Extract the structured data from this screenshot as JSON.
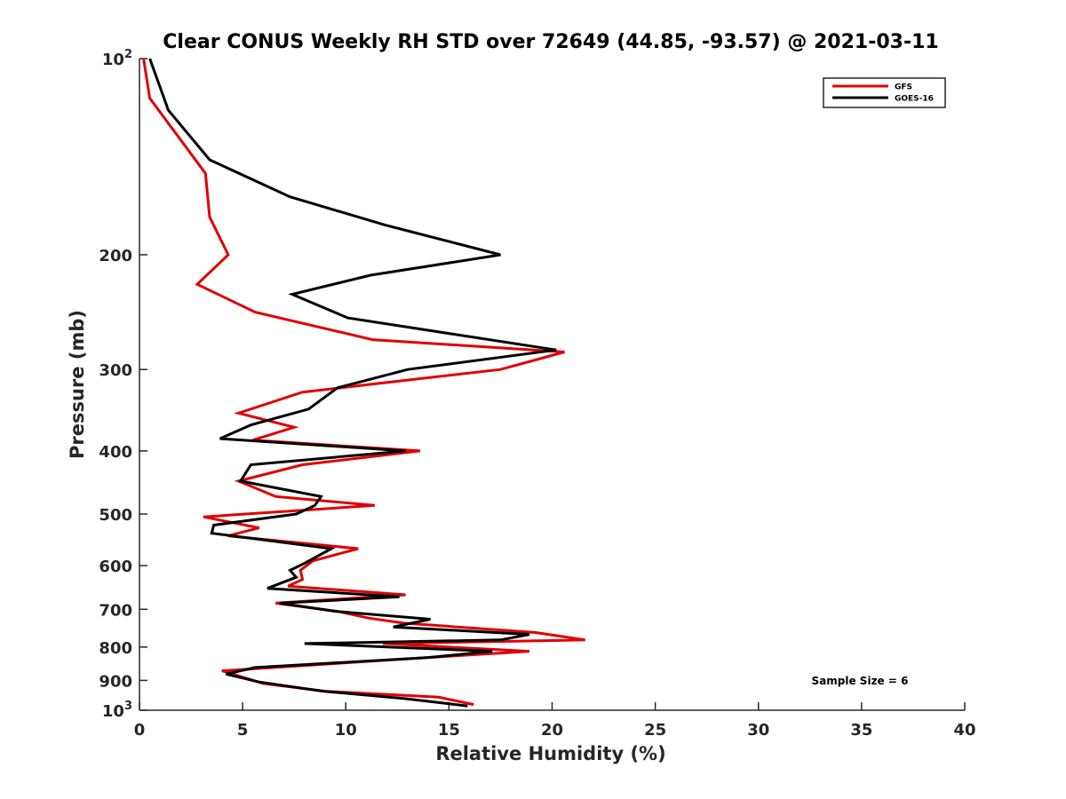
{
  "chart_data": {
    "type": "line",
    "title": "Clear CONUS Weekly RH STD over 72649 (44.85, -93.57) @ 2021-03-11",
    "xlabel": "Relative Humidity (%)",
    "ylabel": "Pressure (mb)",
    "xlim": [
      0,
      40
    ],
    "ylim": [
      100,
      1000
    ],
    "y_scale": "log",
    "y_reversed": true,
    "grid": false,
    "legend_position": "top-right",
    "x_ticks": [
      "0",
      "5",
      "10",
      "15",
      "20",
      "25",
      "30",
      "35",
      "40"
    ],
    "y_ticks": [
      {
        "value": 100,
        "base": "10",
        "exp": "2"
      },
      {
        "value": 200,
        "label": "200"
      },
      {
        "value": 300,
        "label": "300"
      },
      {
        "value": 400,
        "label": "400"
      },
      {
        "value": 500,
        "label": "500"
      },
      {
        "value": 600,
        "label": "600"
      },
      {
        "value": 700,
        "label": "700"
      },
      {
        "value": 800,
        "label": "800"
      },
      {
        "value": 900,
        "label": "900"
      },
      {
        "value": 1000,
        "base": "10",
        "exp": "3"
      }
    ],
    "annotation": "Sample Size = 6",
    "series": [
      {
        "name": "GFS",
        "color": "#e00000",
        "points": [
          [
            0.2,
            100
          ],
          [
            0.5,
            115
          ],
          [
            3.2,
            150
          ],
          [
            3.4,
            175
          ],
          [
            4.3,
            200
          ],
          [
            2.8,
            222
          ],
          [
            5.6,
            245
          ],
          [
            11.3,
            270
          ],
          [
            20.6,
            282
          ],
          [
            17.5,
            300
          ],
          [
            7.9,
            325
          ],
          [
            4.8,
            350
          ],
          [
            7.5,
            368
          ],
          [
            5.5,
            385
          ],
          [
            13.6,
            400
          ],
          [
            7.9,
            420
          ],
          [
            4.8,
            445
          ],
          [
            6.6,
            470
          ],
          [
            11.4,
            485
          ],
          [
            3.1,
            505
          ],
          [
            5.8,
            525
          ],
          [
            4.3,
            540
          ],
          [
            10.6,
            565
          ],
          [
            8.4,
            590
          ],
          [
            7.8,
            610
          ],
          [
            7.9,
            630
          ],
          [
            7.2,
            645
          ],
          [
            12.9,
            665
          ],
          [
            6.6,
            685
          ],
          [
            9.6,
            705
          ],
          [
            11.1,
            722
          ],
          [
            12.8,
            735
          ],
          [
            19.2,
            760
          ],
          [
            21.6,
            780
          ],
          [
            11.8,
            790
          ],
          [
            18.9,
            812
          ],
          [
            14.0,
            830
          ],
          [
            4.0,
            870
          ],
          [
            6.0,
            910
          ],
          [
            9.0,
            935
          ],
          [
            14.5,
            955
          ],
          [
            16.2,
            980
          ]
        ]
      },
      {
        "name": "GOES-16",
        "color": "#000000",
        "points": [
          [
            0.5,
            100
          ],
          [
            1.4,
            120
          ],
          [
            3.4,
            143
          ],
          [
            7.3,
            163
          ],
          [
            11.9,
            180
          ],
          [
            17.5,
            200
          ],
          [
            11.2,
            215
          ],
          [
            7.4,
            230
          ],
          [
            10.1,
            250
          ],
          [
            20.2,
            280
          ],
          [
            13.0,
            300
          ],
          [
            9.6,
            320
          ],
          [
            8.2,
            345
          ],
          [
            5.4,
            365
          ],
          [
            3.9,
            383
          ],
          [
            12.9,
            400
          ],
          [
            5.4,
            420
          ],
          [
            4.9,
            445
          ],
          [
            8.8,
            470
          ],
          [
            8.5,
            485
          ],
          [
            7.6,
            500
          ],
          [
            3.6,
            520
          ],
          [
            3.5,
            535
          ],
          [
            9.3,
            565
          ],
          [
            8.0,
            595
          ],
          [
            7.3,
            610
          ],
          [
            7.6,
            625
          ],
          [
            6.2,
            650
          ],
          [
            12.6,
            670
          ],
          [
            6.8,
            685
          ],
          [
            9.5,
            705
          ],
          [
            14.1,
            725
          ],
          [
            12.3,
            745
          ],
          [
            18.9,
            765
          ],
          [
            17.5,
            780
          ],
          [
            8.0,
            790
          ],
          [
            17.1,
            812
          ],
          [
            14.0,
            830
          ],
          [
            5.6,
            860
          ],
          [
            4.2,
            880
          ],
          [
            5.8,
            905
          ],
          [
            8.9,
            935
          ],
          [
            12.9,
            960
          ],
          [
            15.9,
            985
          ]
        ]
      }
    ]
  }
}
